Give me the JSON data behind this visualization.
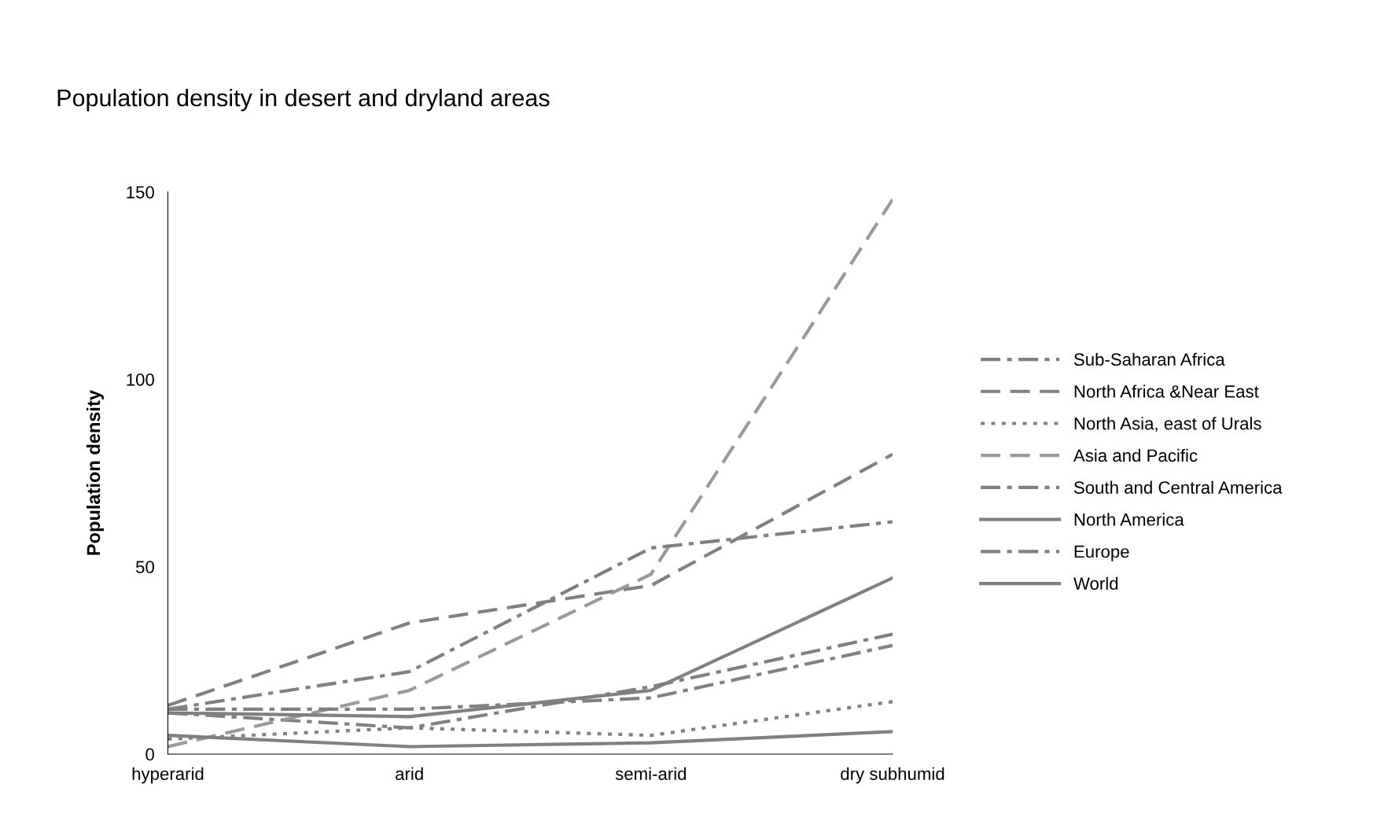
{
  "chart_data": {
    "type": "line",
    "title": "Population density in desert and dryland areas",
    "ylabel": "Population density",
    "categories": [
      "hyperarid",
      "arid",
      "semi-arid",
      "dry subhumid"
    ],
    "ylim": [
      0,
      150
    ],
    "yticks": [
      0,
      50,
      100,
      150
    ],
    "grid": false,
    "legend": "right",
    "marker": "none",
    "series": [
      {
        "name": "Sub-Saharan Africa",
        "color": "#808080",
        "line_style": "dashdot",
        "values": [
          11,
          7,
          18,
          32
        ]
      },
      {
        "name": "North Africa &Near East",
        "color": "#808080",
        "line_style": "dashed",
        "values": [
          13,
          35,
          45,
          80
        ]
      },
      {
        "name": "North Asia, east of Urals",
        "color": "#808080",
        "line_style": "dotted",
        "values": [
          4,
          7,
          5,
          14
        ]
      },
      {
        "name": "Asia and Pacific",
        "color": "#999999",
        "line_style": "dashed",
        "values": [
          2,
          17,
          48,
          148
        ]
      },
      {
        "name": "South and Central America",
        "color": "#808080",
        "line_style": "dashdot",
        "values": [
          12,
          12,
          15,
          29
        ]
      },
      {
        "name": "North America",
        "color": "#808080",
        "line_style": "solid",
        "values": [
          5,
          2,
          3,
          6
        ]
      },
      {
        "name": "Europe",
        "color": "#808080",
        "line_style": "dashdot",
        "values": [
          12,
          22,
          55,
          62
        ]
      },
      {
        "name": "World",
        "color": "#808080",
        "line_style": "solid",
        "values": [
          11,
          10,
          17,
          47
        ]
      }
    ]
  }
}
